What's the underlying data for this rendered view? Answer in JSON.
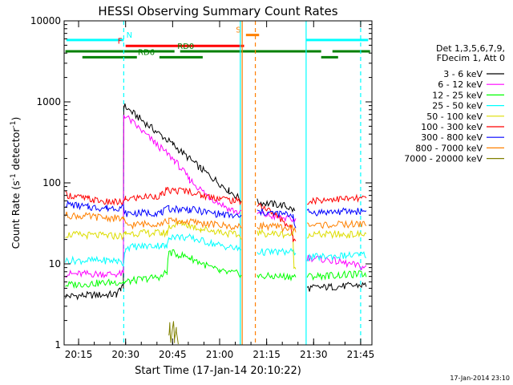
{
  "chart_data": {
    "type": "line",
    "title": "HESSI Observing Summary Count Rates",
    "xlabel": "Start Time (17-Jan-14 20:10:22)",
    "ylabel": "Count Rate (s",
    "ylabel_sup1": "-1",
    "ylabel_mid": " detector",
    "ylabel_sup2": "-1",
    "ylabel_end": ")",
    "y_scale": "log",
    "ylim": [
      1,
      10000
    ],
    "xlim": [
      20.173,
      21.81
    ],
    "x_ticks": [
      {
        "v": 20.25,
        "label": "20:15"
      },
      {
        "v": 20.5,
        "label": "20:30"
      },
      {
        "v": 20.75,
        "label": "20:45"
      },
      {
        "v": 21.0,
        "label": "21:00"
      },
      {
        "v": 21.25,
        "label": "21:15"
      },
      {
        "v": 21.5,
        "label": "21:30"
      },
      {
        "v": 21.75,
        "label": "21:45"
      }
    ],
    "y_ticks": [
      {
        "v": 1,
        "label": "1"
      },
      {
        "v": 10,
        "label": "10"
      },
      {
        "v": 100,
        "label": "100"
      },
      {
        "v": 1000,
        "label": "1000"
      },
      {
        "v": 10000,
        "label": "10000"
      }
    ],
    "legend_header": [
      "Det 1,3,5,6,7,9,",
      "FDecim 1, Att 0"
    ],
    "legend_placement": "right",
    "series": [
      {
        "name": "3 - 6 keV",
        "color": "#000000",
        "points": [
          [
            20.18,
            4
          ],
          [
            20.45,
            4.2
          ],
          [
            20.475,
            5
          ],
          [
            20.488,
            5
          ],
          [
            20.49,
            900
          ],
          [
            20.6,
            560
          ],
          [
            20.75,
            300
          ],
          [
            20.9,
            150
          ],
          [
            21.05,
            80
          ],
          [
            21.115,
            62
          ],
          [
            21.116,
            null
          ],
          [
            21.2,
            58
          ],
          [
            21.35,
            52
          ],
          [
            21.4,
            45
          ],
          [
            21.405,
            null
          ],
          [
            21.46,
            null
          ],
          [
            21.465,
            5
          ],
          [
            21.78,
            5.5
          ]
        ]
      },
      {
        "name": "6 - 12 keV",
        "color": "#ff00ff",
        "points": [
          [
            20.18,
            7.5
          ],
          [
            20.488,
            7.5
          ],
          [
            20.49,
            700
          ],
          [
            20.65,
            320
          ],
          [
            20.76,
            190
          ],
          [
            20.84,
            110
          ],
          [
            20.94,
            68
          ],
          [
            21.05,
            48
          ],
          [
            21.115,
            42
          ],
          [
            21.116,
            null
          ],
          [
            21.2,
            42
          ],
          [
            21.35,
            36
          ],
          [
            21.405,
            35
          ],
          [
            21.406,
            null
          ],
          [
            21.46,
            null
          ],
          [
            21.465,
            12
          ],
          [
            21.6,
            11
          ],
          [
            21.78,
            9
          ]
        ]
      },
      {
        "name": "12 - 25 keV",
        "color": "#00ff00",
        "points": [
          [
            20.18,
            5.5
          ],
          [
            20.488,
            6
          ],
          [
            20.5,
            6
          ],
          [
            20.69,
            7
          ],
          [
            20.72,
            8
          ],
          [
            20.73,
            14
          ],
          [
            20.84,
            12
          ],
          [
            21.0,
            8
          ],
          [
            21.115,
            7.5
          ],
          [
            21.116,
            null
          ],
          [
            21.2,
            7
          ],
          [
            21.405,
            7
          ],
          [
            21.406,
            null
          ],
          [
            21.46,
            null
          ],
          [
            21.465,
            7
          ],
          [
            21.78,
            7.5
          ]
        ]
      },
      {
        "name": "25 - 50 keV",
        "color": "#00ffff",
        "points": [
          [
            20.18,
            11
          ],
          [
            20.45,
            11
          ],
          [
            20.488,
            10
          ],
          [
            20.5,
            16
          ],
          [
            20.69,
            17
          ],
          [
            20.72,
            16
          ],
          [
            20.73,
            22
          ],
          [
            20.84,
            21
          ],
          [
            21.0,
            17
          ],
          [
            21.115,
            15
          ],
          [
            21.116,
            null
          ],
          [
            21.2,
            14
          ],
          [
            21.405,
            14
          ],
          [
            21.406,
            null
          ],
          [
            21.46,
            null
          ],
          [
            21.465,
            12
          ],
          [
            21.78,
            13
          ]
        ]
      },
      {
        "name": "50 - 100 keV",
        "color": "#dddd00",
        "points": [
          [
            20.18,
            23
          ],
          [
            20.488,
            22
          ],
          [
            20.5,
            24
          ],
          [
            20.69,
            24
          ],
          [
            20.72,
            24
          ],
          [
            20.73,
            29
          ],
          [
            20.8,
            32
          ],
          [
            20.9,
            27
          ],
          [
            21.0,
            25
          ],
          [
            21.115,
            22
          ],
          [
            21.116,
            null
          ],
          [
            21.2,
            24
          ],
          [
            21.39,
            23
          ],
          [
            21.395,
            9
          ],
          [
            21.405,
            9
          ],
          [
            21.406,
            null
          ],
          [
            21.46,
            null
          ],
          [
            21.465,
            23
          ],
          [
            21.78,
            23
          ]
        ]
      },
      {
        "name": "100 - 300 keV",
        "color": "#ff0000",
        "points": [
          [
            20.18,
            72
          ],
          [
            20.3,
            63
          ],
          [
            20.4,
            58
          ],
          [
            20.488,
            57
          ],
          [
            20.5,
            63
          ],
          [
            20.6,
            67
          ],
          [
            20.69,
            70
          ],
          [
            20.72,
            80
          ],
          [
            20.84,
            80
          ],
          [
            20.9,
            70
          ],
          [
            21.0,
            65
          ],
          [
            21.115,
            58
          ],
          [
            21.116,
            null
          ],
          [
            21.2,
            56
          ],
          [
            21.3,
            40
          ],
          [
            21.38,
            28
          ],
          [
            21.39,
            20
          ],
          [
            21.405,
            20
          ],
          [
            21.406,
            null
          ],
          [
            21.46,
            null
          ],
          [
            21.465,
            60
          ],
          [
            21.6,
            63
          ],
          [
            21.78,
            64
          ]
        ]
      },
      {
        "name": "300 - 800 keV",
        "color": "#0000ff",
        "points": [
          [
            20.18,
            55
          ],
          [
            20.3,
            50
          ],
          [
            20.4,
            49
          ],
          [
            20.488,
            50
          ],
          [
            20.5,
            42
          ],
          [
            20.69,
            43
          ],
          [
            20.73,
            48
          ],
          [
            20.84,
            47
          ],
          [
            21.0,
            41
          ],
          [
            21.115,
            38
          ],
          [
            21.116,
            null
          ],
          [
            21.2,
            44
          ],
          [
            21.39,
            40
          ],
          [
            21.405,
            28
          ],
          [
            21.406,
            null
          ],
          [
            21.46,
            null
          ],
          [
            21.465,
            43
          ],
          [
            21.78,
            45
          ]
        ]
      },
      {
        "name": "800 - 7000 keV",
        "color": "#ff8000",
        "points": [
          [
            20.18,
            40
          ],
          [
            20.488,
            36
          ],
          [
            20.5,
            30
          ],
          [
            20.69,
            32
          ],
          [
            20.73,
            34
          ],
          [
            20.84,
            33
          ],
          [
            21.0,
            30
          ],
          [
            21.115,
            28
          ],
          [
            21.116,
            null
          ],
          [
            21.2,
            30
          ],
          [
            21.405,
            27
          ],
          [
            21.406,
            null
          ],
          [
            21.46,
            null
          ],
          [
            21.465,
            30
          ],
          [
            21.78,
            31
          ]
        ]
      },
      {
        "name": "7000 - 20000 keV",
        "color": "#808000",
        "points": [
          [
            20.73,
            1.2
          ],
          [
            20.735,
            1.9
          ],
          [
            20.74,
            1.1
          ],
          [
            20.755,
            2
          ],
          [
            20.76,
            1.1
          ],
          [
            20.77,
            1.5
          ],
          [
            20.78,
            1.1
          ]
        ]
      }
    ],
    "flag_bars": [
      {
        "label": "N",
        "color": "#00ffff",
        "label_x": 20.52,
        "y": 5800,
        "segments": [
          [
            20.185,
            20.49
          ],
          [
            21.46,
            21.79
          ]
        ]
      },
      {
        "label": "S",
        "color": "#ff8000",
        "label_x": 21.1,
        "y": 6700,
        "segments": [
          [
            21.14,
            21.21
          ]
        ]
      },
      {
        "label": "F",
        "color": "#ff0000",
        "label_x": 20.47,
        "y": 4900,
        "segments": [
          [
            20.5,
            21.13
          ]
        ]
      },
      {
        "label": "RD0",
        "color": "#008000",
        "label_x": 20.82,
        "y": 4200,
        "segments": [
          [
            20.18,
            20.76
          ],
          [
            20.79,
            21.54
          ],
          [
            21.6,
            21.8
          ]
        ]
      },
      {
        "label": "RD6",
        "color": "#008000",
        "label_x": 20.61,
        "y": 3550,
        "segments": [
          [
            20.27,
            20.56
          ],
          [
            20.68,
            20.91
          ],
          [
            21.54,
            21.63
          ]
        ]
      }
    ],
    "vlines": [
      {
        "x": 20.49,
        "color": "#00ffff",
        "dash": true
      },
      {
        "x": 21.75,
        "color": "#00ffff",
        "dash": true
      },
      {
        "x": 21.46,
        "color": "#00ffff",
        "dash": false
      },
      {
        "x": 21.19,
        "color": "#ff8000",
        "dash": true
      },
      {
        "x": 21.12,
        "color": "#ff8000",
        "dash": false
      },
      {
        "x": 21.11,
        "color": "#00ffff",
        "dash": false
      }
    ],
    "footer_date": "17-Jan-2014 23:10",
    "grid": false
  }
}
